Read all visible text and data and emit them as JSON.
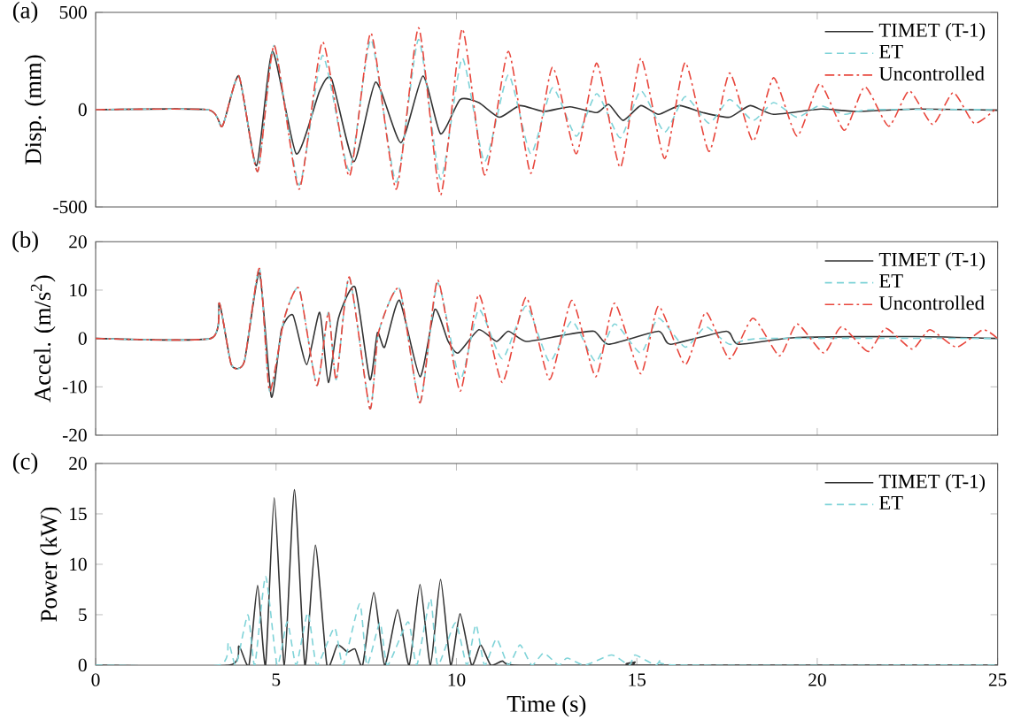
{
  "chart_data": [
    {
      "type": "line",
      "ylabel": "Disp. (mm)",
      "annotations": [
        "(a)"
      ],
      "xlim": [
        0,
        25
      ],
      "xticks": [
        0,
        5,
        10,
        15,
        20,
        25
      ],
      "ylim": [
        -500,
        500
      ],
      "yticks": [
        -500,
        0,
        500
      ],
      "tick_labels": "y",
      "legend": "top right",
      "series": [
        {
          "name": "TIMET (T-1)",
          "color": "#333333",
          "line_style": "solid",
          "x": [
            0,
            3.1,
            3.51,
            3.97,
            4.46,
            4.9,
            5.56,
            6.21,
            6.54,
            7.16,
            7.76,
            8.46,
            9.07,
            9.56,
            10.1,
            10.62,
            11.19,
            11.76,
            12.42,
            13.15,
            13.89,
            14.22,
            14.62,
            15.11,
            15.6,
            16.18,
            16.83,
            17.57,
            18.14,
            18.79,
            20.1,
            21.08,
            22.71,
            25
          ],
          "values": [
            0,
            0,
            -85,
            173,
            -288,
            300,
            -227,
            97,
            158,
            -267,
            142,
            -170,
            173,
            -124,
            52,
            36,
            -39,
            21,
            -9,
            15,
            -15,
            27,
            -55,
            21,
            -24,
            21,
            -15,
            -39,
            21,
            -24,
            3,
            -9,
            3,
            -3
          ]
        },
        {
          "name": "ET",
          "color": "#7fd3d8",
          "line_style": "dashed",
          "x": [
            0,
            3.1,
            3.51,
            3.97,
            4.49,
            4.95,
            5.64,
            6.29,
            7.03,
            7.63,
            8.33,
            8.95,
            9.56,
            10.16,
            10.78,
            11.44,
            12.06,
            12.66,
            13.32,
            13.89,
            14.54,
            15.11,
            15.77,
            16.34,
            17.0,
            17.57,
            18.22,
            18.79,
            19.44,
            20.07,
            20.75,
            21.5,
            25
          ],
          "values": [
            0,
            0,
            -85,
            173,
            -318,
            330,
            -388,
            279,
            -312,
            361,
            -373,
            361,
            -358,
            264,
            -267,
            179,
            -227,
            112,
            -136,
            82,
            -145,
            97,
            -115,
            67,
            -70,
            52,
            -55,
            36,
            -39,
            21,
            -24,
            0,
            0
          ]
        },
        {
          "name": "Uncontrolled",
          "color": "#e8463c",
          "line_style": "dashdot",
          "x": [
            0,
            3.1,
            3.51,
            3.97,
            4.49,
            4.95,
            5.64,
            6.29,
            7.03,
            7.63,
            8.33,
            8.95,
            9.56,
            10.16,
            10.78,
            11.44,
            12.06,
            12.66,
            13.32,
            13.89,
            14.54,
            15.11,
            15.77,
            16.34,
            17.0,
            17.57,
            18.22,
            18.79,
            19.44,
            20.07,
            20.75,
            21.32,
            21.98,
            22.55,
            23.2,
            23.77,
            24.35,
            24.92
          ],
          "values": [
            0,
            0,
            -85,
            173,
            -318,
            330,
            -409,
            348,
            -342,
            394,
            -409,
            421,
            -439,
            415,
            -336,
            300,
            -327,
            218,
            -227,
            239,
            -297,
            264,
            -251,
            242,
            -215,
            188,
            -161,
            164,
            -136,
            133,
            -106,
            118,
            -85,
            97,
            -76,
            88,
            -70,
            0
          ]
        }
      ]
    },
    {
      "type": "line",
      "ylabel": "Accel. (m/s$^{2}$)",
      "annotations": [
        "(b)"
      ],
      "xlim": [
        0,
        25
      ],
      "xticks": [
        0,
        5,
        10,
        15,
        20,
        25
      ],
      "ylim": [
        -20,
        20
      ],
      "yticks": [
        -20,
        -10,
        0,
        10,
        20
      ],
      "tick_labels": "y",
      "legend": "top right",
      "series": [
        {
          "name": "TIMET (T-1)",
          "color": "#333333",
          "line_style": "solid",
          "x": [
            0,
            3.19,
            3.43,
            3.76,
            4.12,
            4.54,
            4.87,
            5.15,
            5.47,
            5.85,
            6.21,
            6.45,
            6.73,
            7.19,
            7.6,
            7.81,
            8.01,
            8.42,
            8.99,
            9.4,
            9.77,
            10.05,
            10.62,
            11.11,
            11.44,
            11.93,
            12.91,
            13.81,
            14.22,
            15.6,
            15.93,
            17.48,
            17.81,
            19.44,
            22.71,
            25
          ],
          "values": [
            0,
            0,
            7.3,
            -5.4,
            -4.8,
            13.6,
            -12.1,
            1.8,
            4.8,
            -5.4,
            5.4,
            -9.1,
            4.2,
            10.6,
            -8.5,
            1.2,
            -1.8,
            7.9,
            -7.9,
            6.0,
            -0.6,
            -3.0,
            1.8,
            -0.6,
            1.5,
            -0.6,
            0.6,
            1.5,
            -1.2,
            1.5,
            -1.2,
            1.5,
            -1.2,
            0.2,
            0.4,
            0
          ]
        },
        {
          "name": "ET",
          "color": "#7fd3d8",
          "line_style": "dashed",
          "x": [
            0,
            3.19,
            3.43,
            3.76,
            4.12,
            4.54,
            4.82,
            5.23,
            5.64,
            6.13,
            6.45,
            6.67,
            7.03,
            7.6,
            7.84,
            8.42,
            8.99,
            9.48,
            10.1,
            10.62,
            11.27,
            11.93,
            12.58,
            13.2,
            13.86,
            14.38,
            15.11,
            15.6,
            16.34,
            16.91,
            17.57,
            18.5,
            25
          ],
          "values": [
            0,
            0,
            7.3,
            -5.4,
            -4.8,
            14.5,
            -10.9,
            4.2,
            10.3,
            -9.7,
            5.4,
            -8.5,
            12.7,
            -14.5,
            1.2,
            10.3,
            -13.3,
            11.5,
            -8.5,
            6.0,
            -4.2,
            6.7,
            -4.8,
            3.6,
            -4.8,
            3.0,
            -3.0,
            4.2,
            -1.8,
            2.4,
            -1.2,
            0,
            0
          ]
        },
        {
          "name": "Uncontrolled",
          "color": "#e8463c",
          "line_style": "dashdot",
          "x": [
            0,
            3.19,
            3.43,
            3.76,
            4.12,
            4.54,
            4.82,
            5.23,
            5.64,
            6.13,
            6.45,
            6.67,
            7.03,
            7.6,
            7.84,
            8.42,
            8.99,
            9.48,
            10.1,
            10.62,
            11.27,
            11.93,
            12.58,
            13.2,
            13.86,
            14.38,
            15.11,
            15.6,
            16.34,
            16.91,
            17.57,
            18.22,
            18.95,
            19.44,
            20.18,
            20.67,
            21.41,
            21.9,
            22.63,
            23.12,
            23.86,
            24.59,
            25
          ],
          "values": [
            0,
            0,
            7.3,
            -5.4,
            -4.8,
            14.5,
            -10.9,
            4.2,
            10.3,
            -9.7,
            5.4,
            -8.5,
            12.7,
            -14.5,
            1.2,
            10.3,
            -13.3,
            12.1,
            -10.9,
            9.1,
            -9.1,
            8.5,
            -8.5,
            7.9,
            -7.9,
            7.3,
            -7.3,
            6.7,
            -5.4,
            5.4,
            -4.2,
            4.2,
            -3.6,
            3.0,
            -3.0,
            2.4,
            -2.7,
            2.1,
            -2.2,
            1.8,
            -1.8,
            1.8,
            0
          ]
        }
      ]
    },
    {
      "type": "line",
      "xlabel": "Time (s)",
      "ylabel": "Power (kW)",
      "annotations": [
        "(c)"
      ],
      "xlim": [
        0,
        25
      ],
      "xticks": [
        0,
        5,
        10,
        15,
        20,
        25
      ],
      "ylim": [
        0,
        20
      ],
      "yticks": [
        0,
        5,
        10,
        15,
        20
      ],
      "legend": "top right",
      "series": [
        {
          "name": "TIMET (T-1)",
          "color": "#333333",
          "line_style": "solid",
          "x": [
            0,
            3.7,
            3.97,
            4.25,
            4.49,
            4.71,
            4.95,
            5.23,
            5.51,
            5.8,
            6.09,
            6.41,
            6.7,
            6.98,
            7.19,
            7.4,
            7.71,
            8.01,
            8.37,
            8.69,
            8.99,
            9.28,
            9.56,
            9.84,
            10.1,
            10.42,
            10.67,
            10.95,
            11.27,
            11.6,
            14.7,
            14.95,
            15.2,
            25
          ],
          "values": [
            0,
            0,
            1.9,
            0,
            7.9,
            0,
            16.6,
            0,
            17.4,
            0,
            11.9,
            0,
            2.0,
            1.3,
            1.6,
            0,
            7.2,
            0,
            5.5,
            0,
            8.0,
            0,
            8.5,
            0,
            5.1,
            0,
            2.0,
            0,
            0.4,
            0,
            0,
            0.3,
            0,
            0
          ]
        },
        {
          "name": "ET",
          "color": "#7fd3d8",
          "line_style": "dashed",
          "x": [
            0,
            3.4,
            3.68,
            3.89,
            4.22,
            4.41,
            4.71,
            5.03,
            5.31,
            5.56,
            5.88,
            6.13,
            6.62,
            6.86,
            7.32,
            7.52,
            7.88,
            8.09,
            8.66,
            8.9,
            9.28,
            9.48,
            9.97,
            10.29,
            10.54,
            10.78,
            11.11,
            11.44,
            11.76,
            12.09,
            12.42,
            12.83,
            13.07,
            13.56,
            14.3,
            14.79,
            14.95,
            15.52,
            15.69,
            16.18,
            25
          ],
          "values": [
            0,
            0,
            2.2,
            0,
            5.0,
            0,
            8.8,
            0,
            4.3,
            0,
            5.2,
            0,
            3.7,
            0,
            6.1,
            0,
            4.2,
            0,
            4.3,
            0,
            6.6,
            0,
            4.2,
            0,
            4.0,
            0,
            2.6,
            0,
            2.0,
            0,
            1.2,
            0,
            0.7,
            0,
            1.0,
            0,
            1.0,
            0,
            0.6,
            0,
            0
          ]
        }
      ]
    }
  ]
}
